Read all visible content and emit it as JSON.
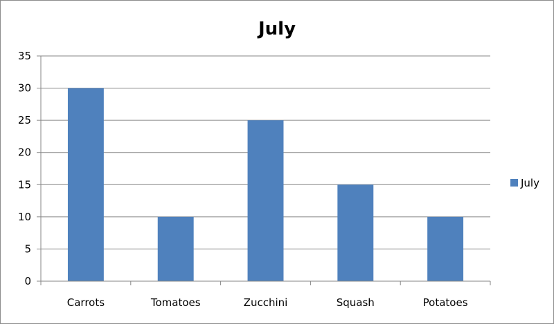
{
  "chart_data": {
    "type": "bar",
    "title": "July",
    "xlabel": "",
    "ylabel": "",
    "categories": [
      "Carrots",
      "Tomatoes",
      "Zucchini",
      "Squash",
      "Potatoes"
    ],
    "series": [
      {
        "name": "July",
        "values": [
          30,
          10,
          25,
          15,
          10
        ],
        "color": "#4f81bd"
      }
    ],
    "ylim": [
      0,
      35
    ],
    "yticks": [
      0,
      5,
      10,
      15,
      20,
      25,
      30,
      35
    ],
    "grid": true,
    "legend_position": "right"
  }
}
